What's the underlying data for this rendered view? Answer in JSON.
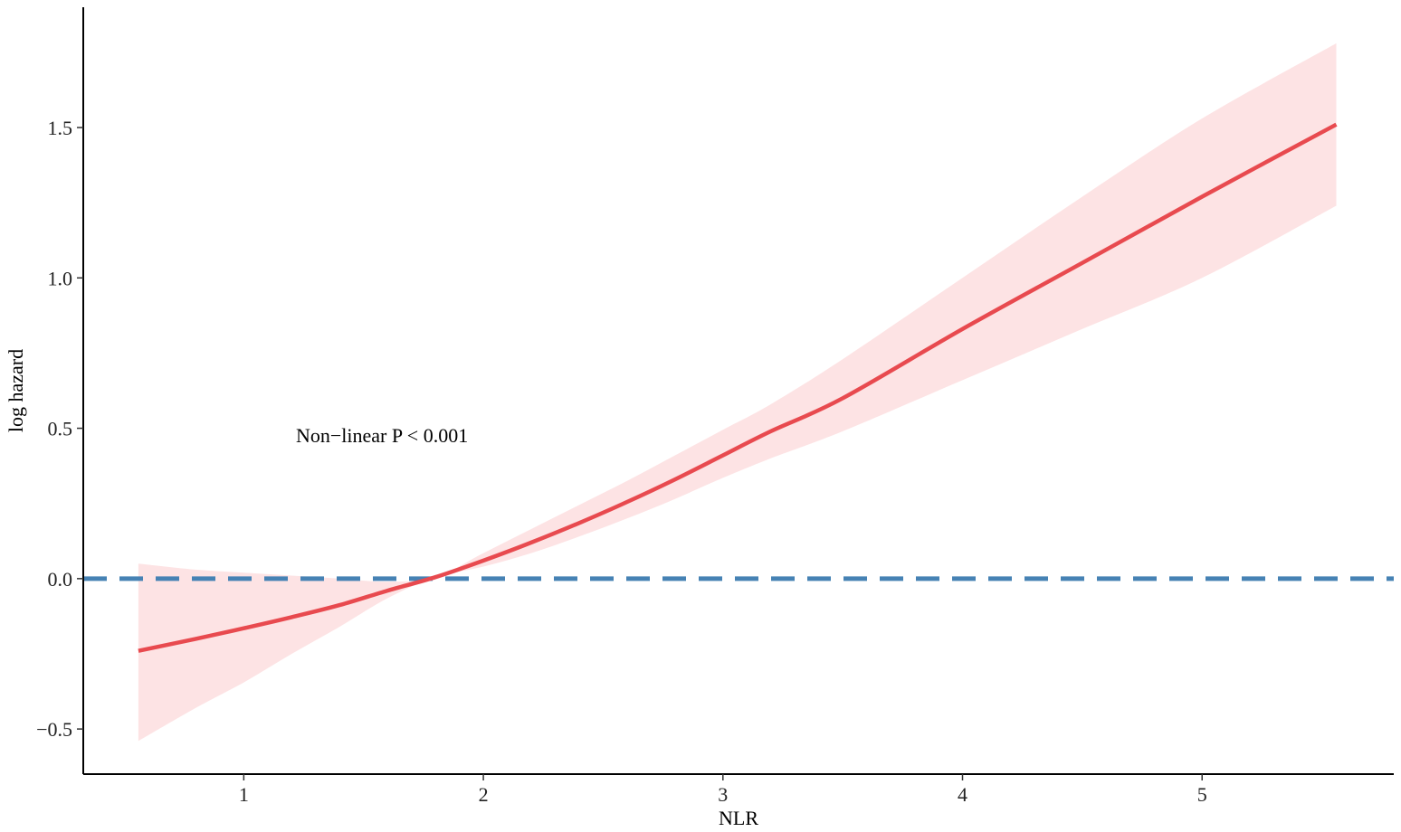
{
  "chart_data": {
    "type": "line",
    "xlabel": "NLR",
    "ylabel": "log hazard",
    "xlim": [
      0.33,
      5.8
    ],
    "ylim": [
      -0.65,
      1.9
    ],
    "xticks": [
      1,
      2,
      3,
      4,
      5
    ],
    "xtick_labels": [
      "1",
      "2",
      "3",
      "4",
      "5"
    ],
    "yticks": [
      -0.5,
      0.0,
      0.5,
      1.0,
      1.5
    ],
    "ytick_labels": [
      "−0.5",
      "0.0",
      "0.5",
      "1.0",
      "1.5"
    ],
    "annotation": {
      "text": "Non−linear P < 0.001",
      "x": 1.2,
      "y": 0.47
    },
    "reference_line": {
      "y": 0,
      "style": "dashed",
      "color": "#4682B4"
    },
    "grid": false,
    "series": [
      {
        "color": "#E84A4F",
        "band_color": "#FDE3E4",
        "x": [
          0.56,
          0.8,
          1.0,
          1.2,
          1.4,
          1.6,
          1.8,
          2.0,
          2.2,
          2.4,
          2.6,
          2.8,
          3.0,
          3.2,
          3.5,
          4.0,
          4.5,
          5.0,
          5.56
        ],
        "y": [
          -0.24,
          -0.2,
          -0.165,
          -0.128,
          -0.088,
          -0.04,
          0.005,
          0.06,
          0.12,
          0.185,
          0.255,
          0.33,
          0.41,
          0.49,
          0.6,
          0.83,
          1.05,
          1.27,
          1.51
        ],
        "lower": [
          -0.54,
          -0.43,
          -0.345,
          -0.25,
          -0.16,
          -0.065,
          0.005,
          0.04,
          0.085,
          0.14,
          0.2,
          0.265,
          0.335,
          0.4,
          0.49,
          0.66,
          0.83,
          1.0,
          1.24
        ],
        "upper": [
          0.05,
          0.03,
          0.02,
          0.01,
          0.0,
          -0.01,
          0.005,
          0.085,
          0.165,
          0.245,
          0.325,
          0.41,
          0.495,
          0.58,
          0.73,
          1.0,
          1.27,
          1.53,
          1.78
        ]
      }
    ]
  }
}
